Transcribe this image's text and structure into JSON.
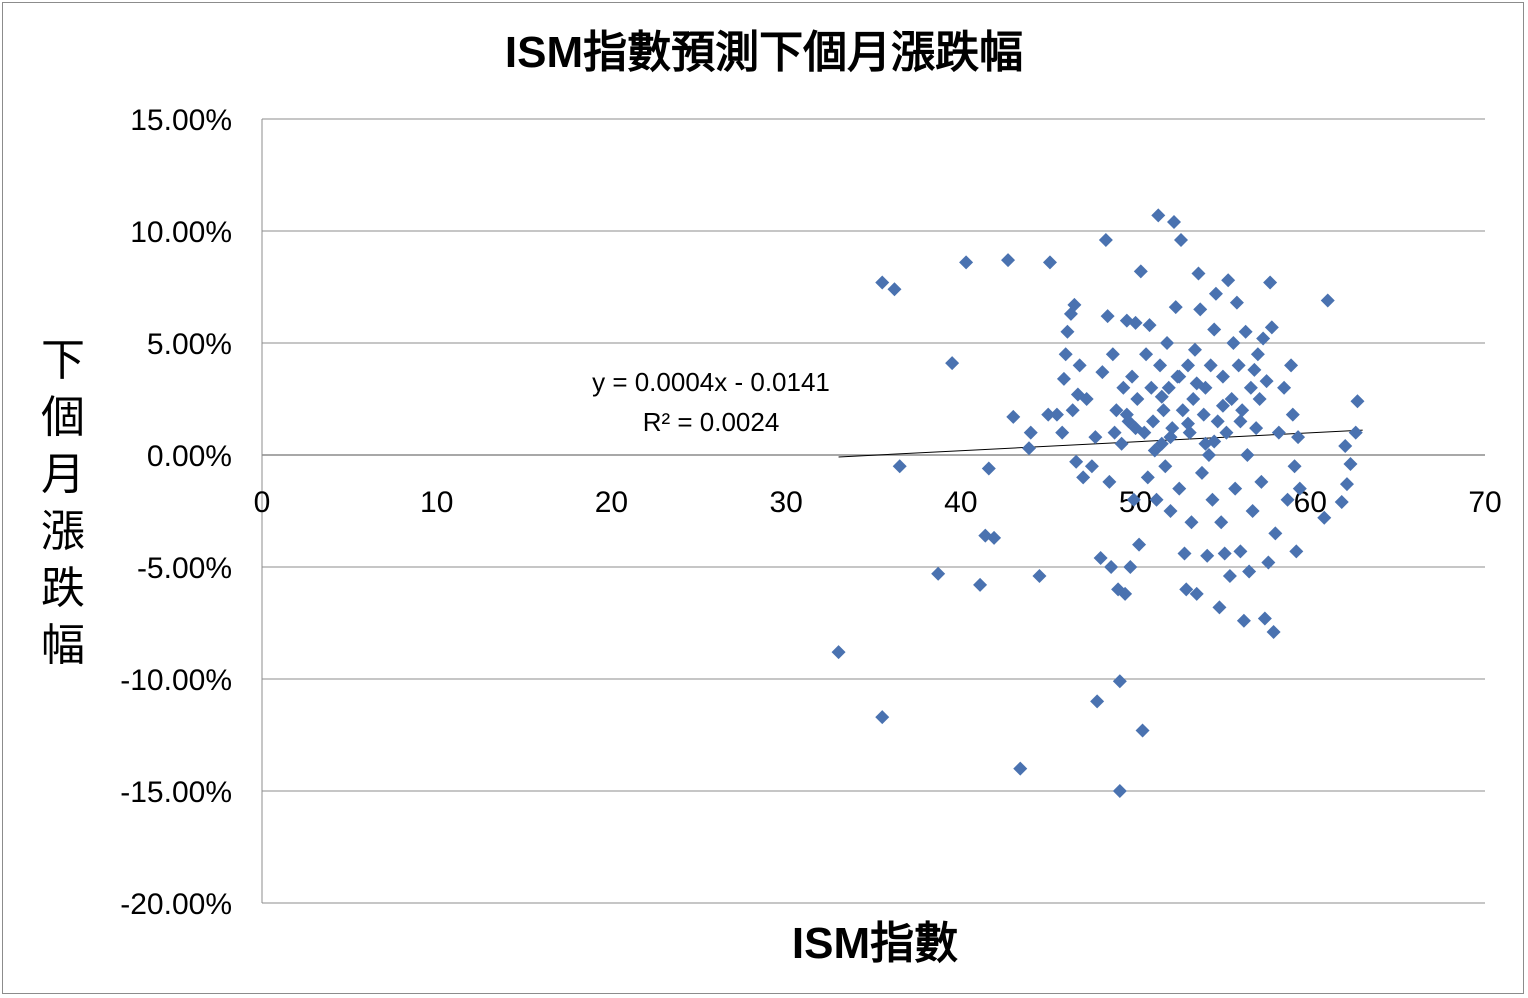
{
  "chart_data": {
    "type": "scatter",
    "title": "ISM指數預測下個月漲跌幅",
    "xlabel": "ISM指數",
    "ylabel": "下個月漲跌幅",
    "xlim": [
      0,
      70
    ],
    "ylim": [
      -0.2,
      0.15
    ],
    "x_ticks": [
      "0",
      "10",
      "20",
      "30",
      "40",
      "50",
      "60",
      "70"
    ],
    "y_ticks": [
      "15.00%",
      "10.00%",
      "5.00%",
      "0.00%",
      "-5.00%",
      "-10.00%",
      "-15.00%",
      "-20.00%"
    ],
    "grid": "horizontal",
    "marker": "diamond",
    "marker_color": "#4a72b0",
    "trendline": {
      "slope": 0.0004,
      "intercept": -0.0141,
      "x_range": [
        33,
        63
      ],
      "equation_label": "y = 0.0004x - 0.0141",
      "r2_label": "R² = 0.0024"
    },
    "points": [
      [
        35.5,
        0.077
      ],
      [
        36.2,
        0.074
      ],
      [
        33.0,
        -0.088
      ],
      [
        35.5,
        -0.117
      ],
      [
        36.5,
        -0.005
      ],
      [
        38.7,
        -0.053
      ],
      [
        39.5,
        0.041
      ],
      [
        40.3,
        0.086
      ],
      [
        41.1,
        -0.058
      ],
      [
        41.4,
        -0.036
      ],
      [
        41.6,
        -0.006
      ],
      [
        41.9,
        -0.037
      ],
      [
        42.7,
        0.087
      ],
      [
        43.0,
        0.017
      ],
      [
        43.4,
        -0.14
      ],
      [
        43.9,
        0.003
      ],
      [
        44.0,
        0.01
      ],
      [
        44.5,
        -0.054
      ],
      [
        45.1,
        0.086
      ],
      [
        45.0,
        0.018
      ],
      [
        45.5,
        0.018
      ],
      [
        45.8,
        0.01
      ],
      [
        45.9,
        0.034
      ],
      [
        46.0,
        0.045
      ],
      [
        46.1,
        0.055
      ],
      [
        46.3,
        0.063
      ],
      [
        46.5,
        0.067
      ],
      [
        46.4,
        0.02
      ],
      [
        46.6,
        -0.003
      ],
      [
        46.7,
        0.027
      ],
      [
        46.8,
        0.04
      ],
      [
        47.0,
        -0.01
      ],
      [
        47.2,
        0.025
      ],
      [
        47.5,
        -0.005
      ],
      [
        47.7,
        0.008
      ],
      [
        47.8,
        -0.11
      ],
      [
        48.0,
        -0.046
      ],
      [
        48.1,
        0.037
      ],
      [
        48.3,
        0.096
      ],
      [
        48.4,
        0.062
      ],
      [
        48.5,
        -0.012
      ],
      [
        48.6,
        -0.05
      ],
      [
        48.7,
        0.045
      ],
      [
        48.8,
        0.01
      ],
      [
        48.9,
        0.02
      ],
      [
        49.0,
        -0.06
      ],
      [
        49.1,
        -0.15
      ],
      [
        49.1,
        -0.101
      ],
      [
        49.2,
        0.005
      ],
      [
        49.3,
        0.03
      ],
      [
        49.4,
        -0.062
      ],
      [
        49.5,
        0.06
      ],
      [
        49.6,
        0.015
      ],
      [
        49.7,
        -0.05
      ],
      [
        49.8,
        0.035
      ],
      [
        49.9,
        -0.02
      ],
      [
        50.0,
        0.059
      ],
      [
        50.1,
        0.025
      ],
      [
        50.2,
        -0.04
      ],
      [
        50.3,
        0.082
      ],
      [
        50.4,
        -0.123
      ],
      [
        50.5,
        0.01
      ],
      [
        50.6,
        0.045
      ],
      [
        50.7,
        -0.01
      ],
      [
        50.8,
        0.058
      ],
      [
        50.9,
        0.03
      ],
      [
        51.0,
        0.015
      ],
      [
        51.2,
        -0.02
      ],
      [
        51.3,
        0.107
      ],
      [
        51.4,
        0.04
      ],
      [
        51.5,
        0.005
      ],
      [
        51.6,
        0.02
      ],
      [
        51.7,
        -0.005
      ],
      [
        51.8,
        0.05
      ],
      [
        51.9,
        0.03
      ],
      [
        52.0,
        -0.025
      ],
      [
        52.1,
        0.012
      ],
      [
        52.2,
        0.104
      ],
      [
        52.3,
        0.066
      ],
      [
        52.4,
        0.035
      ],
      [
        52.5,
        -0.015
      ],
      [
        52.6,
        0.096
      ],
      [
        52.7,
        0.02
      ],
      [
        52.8,
        -0.044
      ],
      [
        52.9,
        -0.06
      ],
      [
        53.0,
        0.04
      ],
      [
        53.1,
        0.01
      ],
      [
        53.2,
        -0.03
      ],
      [
        53.3,
        0.025
      ],
      [
        53.4,
        0.047
      ],
      [
        53.5,
        -0.062
      ],
      [
        53.6,
        0.081
      ],
      [
        53.7,
        0.065
      ],
      [
        53.8,
        -0.008
      ],
      [
        53.9,
        0.018
      ],
      [
        54.0,
        0.03
      ],
      [
        54.1,
        -0.045
      ],
      [
        54.2,
        0.0
      ],
      [
        54.3,
        0.04
      ],
      [
        54.4,
        -0.02
      ],
      [
        54.5,
        0.056
      ],
      [
        54.6,
        0.072
      ],
      [
        54.7,
        0.015
      ],
      [
        54.8,
        -0.068
      ],
      [
        54.9,
        -0.03
      ],
      [
        55.0,
        0.035
      ],
      [
        55.1,
        -0.044
      ],
      [
        55.2,
        0.01
      ],
      [
        55.3,
        0.078
      ],
      [
        55.4,
        -0.054
      ],
      [
        55.5,
        0.025
      ],
      [
        55.6,
        0.05
      ],
      [
        55.7,
        -0.015
      ],
      [
        55.8,
        0.068
      ],
      [
        55.9,
        0.04
      ],
      [
        56.0,
        -0.043
      ],
      [
        56.1,
        0.02
      ],
      [
        56.2,
        -0.074
      ],
      [
        56.3,
        0.055
      ],
      [
        56.4,
        0.0
      ],
      [
        56.5,
        -0.052
      ],
      [
        56.6,
        0.03
      ],
      [
        56.7,
        -0.025
      ],
      [
        56.8,
        0.038
      ],
      [
        56.9,
        0.012
      ],
      [
        57.0,
        0.045
      ],
      [
        57.1,
        0.025
      ],
      [
        57.2,
        -0.012
      ],
      [
        57.3,
        0.052
      ],
      [
        57.4,
        -0.073
      ],
      [
        57.5,
        0.033
      ],
      [
        57.6,
        -0.048
      ],
      [
        57.7,
        0.077
      ],
      [
        57.8,
        0.057
      ],
      [
        57.9,
        -0.079
      ],
      [
        58.0,
        -0.035
      ],
      [
        58.2,
        0.01
      ],
      [
        58.5,
        0.03
      ],
      [
        58.7,
        -0.02
      ],
      [
        58.9,
        0.04
      ],
      [
        59.0,
        0.018
      ],
      [
        59.1,
        -0.005
      ],
      [
        59.2,
        -0.043
      ],
      [
        59.3,
        0.008
      ],
      [
        59.4,
        -0.015
      ],
      [
        60.8,
        -0.028
      ],
      [
        61.0,
        0.069
      ],
      [
        61.8,
        -0.021
      ],
      [
        62.0,
        0.004
      ],
      [
        62.1,
        -0.013
      ],
      [
        62.3,
        -0.004
      ],
      [
        62.6,
        0.01
      ],
      [
        62.7,
        0.024
      ],
      [
        51.1,
        0.002
      ],
      [
        52.5,
        0.035
      ],
      [
        53.0,
        0.014
      ],
      [
        54.0,
        0.005
      ],
      [
        55.0,
        0.022
      ],
      [
        56.0,
        0.015
      ],
      [
        50.0,
        0.012
      ],
      [
        49.5,
        0.018
      ],
      [
        51.5,
        0.026
      ],
      [
        52.0,
        0.008
      ],
      [
        53.5,
        0.032
      ],
      [
        54.5,
        0.006
      ]
    ]
  }
}
